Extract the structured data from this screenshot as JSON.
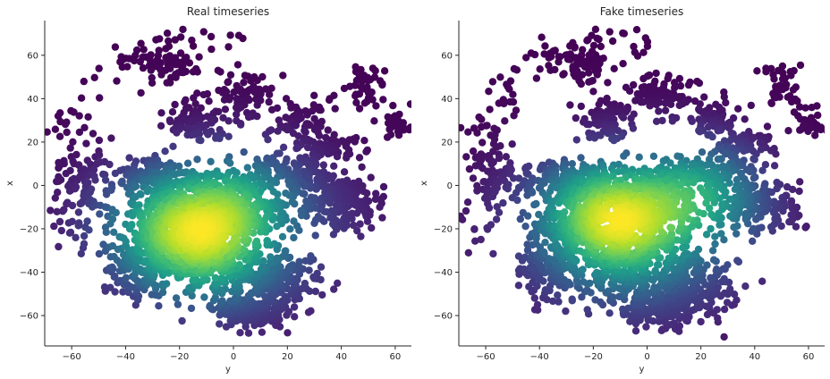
{
  "chart_data": [
    {
      "type": "scatter",
      "title": "Real timeseries",
      "xlabel": "y",
      "ylabel": "x",
      "xlim": [
        -70,
        66
      ],
      "ylim": [
        -74,
        76
      ],
      "xticks": [
        -60,
        -40,
        -20,
        0,
        20,
        40,
        60
      ],
      "yticks": [
        -60,
        -40,
        -20,
        0,
        20,
        40,
        60
      ],
      "colormap": "viridis",
      "color_encodes": "local point density",
      "grid": false,
      "hot_spots": [
        {
          "x": -25,
          "y": -18
        },
        {
          "x": 0,
          "y": -8
        },
        {
          "x": -10,
          "y": -30
        }
      ]
    },
    {
      "type": "scatter",
      "title": "Fake timeseries",
      "xlabel": "y",
      "ylabel": "x",
      "xlim": [
        -70,
        66
      ],
      "ylim": [
        -74,
        76
      ],
      "xticks": [
        -60,
        -40,
        -20,
        0,
        20,
        40,
        60
      ],
      "yticks": [
        -60,
        -40,
        -20,
        0,
        20,
        40,
        60
      ],
      "colormap": "viridis",
      "color_encodes": "local point density",
      "grid": false,
      "hot_spots": [
        {
          "x": -18,
          "y": -10
        },
        {
          "x": -8,
          "y": -22
        },
        {
          "x": 18,
          "y": -4
        }
      ]
    }
  ],
  "colors": {
    "viridis": [
      "#440154",
      "#482878",
      "#3e4989",
      "#31688e",
      "#26828e",
      "#1f9e89",
      "#35b779",
      "#6ece58",
      "#b5de2b",
      "#fde725"
    ],
    "axis": "#262626",
    "background": "#ffffff"
  }
}
